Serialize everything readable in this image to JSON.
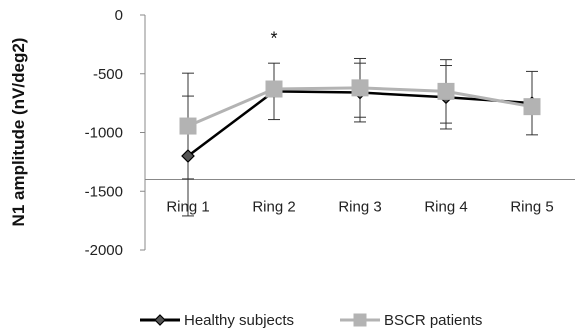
{
  "chart_data": {
    "type": "line",
    "title": "",
    "xlabel": "",
    "ylabel": "N1 amplitude (nV/deg2)",
    "categories": [
      "Ring 1",
      "Ring 2",
      "Ring 3",
      "Ring 4",
      "Ring 5"
    ],
    "ylim": [
      -2000,
      0
    ],
    "yticks": [
      0,
      -500,
      -1000,
      -1500,
      -2000
    ],
    "ytick_labels": [
      "0",
      "-500",
      "-1000",
      "-1500",
      "-2000"
    ],
    "x_axis_at": -1400,
    "grid": false,
    "legend_position": "bottom",
    "series": [
      {
        "name": "Healthy subjects",
        "values": [
          -1200,
          -650,
          -660,
          -700,
          -750
        ],
        "error": [
          510,
          240,
          250,
          270,
          270
        ],
        "color": "#000000",
        "marker": "diamond",
        "marker_fill": "#555555"
      },
      {
        "name": "BSCR patients",
        "values": [
          -945,
          -630,
          -620,
          -650,
          -780
        ],
        "error": [
          450,
          0,
          250,
          270,
          0
        ],
        "color": "#b3b3b3",
        "marker": "square",
        "marker_fill": "#b3b3b3"
      }
    ],
    "annotations": [
      {
        "text": "*",
        "category": "Ring 2",
        "y": -200
      }
    ]
  }
}
